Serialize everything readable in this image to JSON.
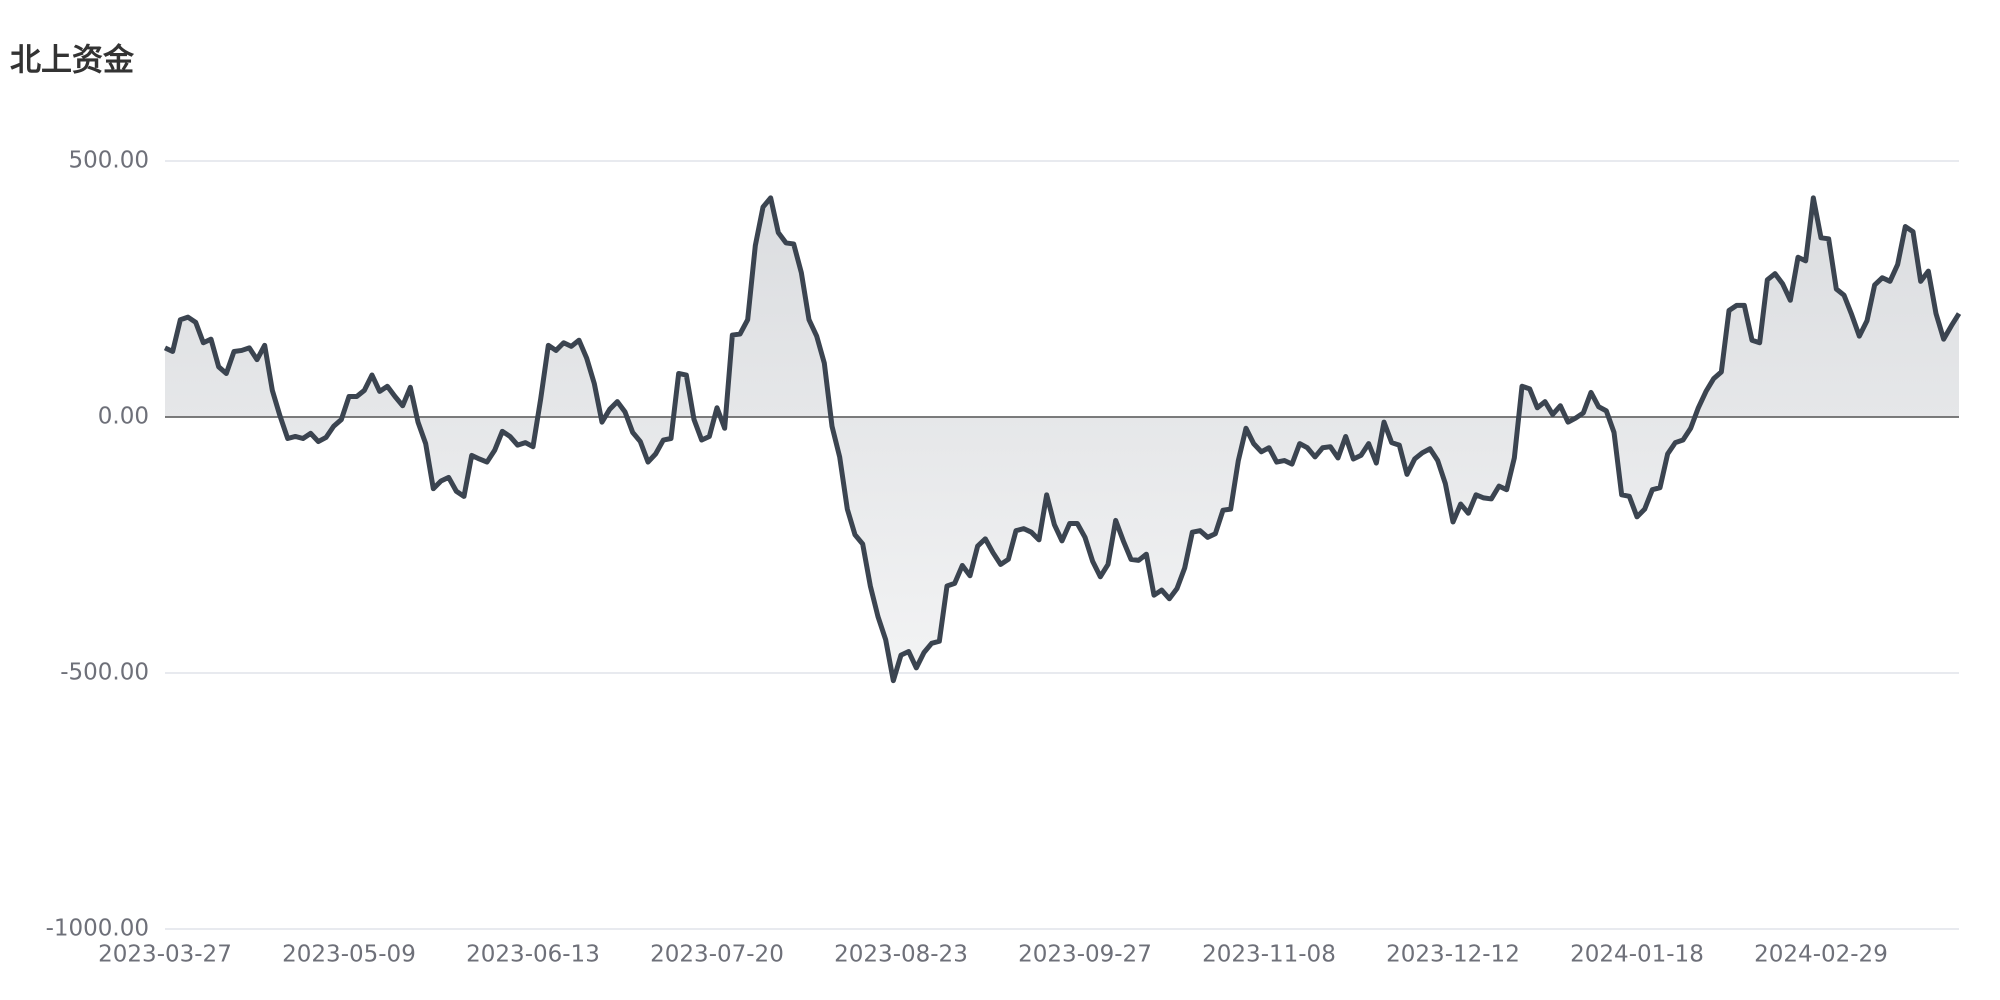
{
  "chart_data": {
    "type": "line",
    "title": "北上资金",
    "categories": [
      "2023-03-27",
      null,
      null,
      null,
      null,
      null,
      null,
      null,
      null,
      null,
      null,
      null,
      null,
      null,
      null,
      null,
      null,
      null,
      null,
      null,
      null,
      null,
      null,
      null,
      "2023-05-09",
      null,
      null,
      null,
      null,
      null,
      null,
      null,
      null,
      null,
      null,
      null,
      null,
      null,
      null,
      null,
      null,
      null,
      null,
      null,
      null,
      null,
      null,
      null,
      "2023-06-13",
      null,
      null,
      null,
      null,
      null,
      null,
      null,
      null,
      null,
      null,
      null,
      null,
      null,
      null,
      null,
      null,
      null,
      null,
      null,
      null,
      null,
      null,
      null,
      "2023-07-20",
      null,
      null,
      null,
      null,
      null,
      null,
      null,
      null,
      null,
      null,
      null,
      null,
      null,
      null,
      null,
      null,
      null,
      null,
      null,
      null,
      null,
      null,
      null,
      "2023-08-23",
      null,
      null,
      null,
      null,
      null,
      null,
      null,
      null,
      null,
      null,
      null,
      null,
      null,
      null,
      null,
      null,
      null,
      null,
      null,
      null,
      null,
      null,
      null,
      "2023-09-27",
      null,
      null,
      null,
      null,
      null,
      null,
      null,
      null,
      null,
      null,
      null,
      null,
      null,
      null,
      null,
      null,
      null,
      null,
      null,
      null,
      null,
      null,
      null,
      "2023-11-08",
      null,
      null,
      null,
      null,
      null,
      null,
      null,
      null,
      null,
      null,
      null,
      null,
      null,
      null,
      null,
      null,
      null,
      null,
      null,
      null,
      null,
      null,
      null,
      "2023-12-12",
      null,
      null,
      null,
      null,
      null,
      null,
      null,
      null,
      null,
      null,
      null,
      null,
      null,
      null,
      null,
      null,
      null,
      null,
      null,
      null,
      null,
      null,
      null,
      "2024-01-18",
      null,
      null,
      null,
      null,
      null,
      null,
      null,
      null,
      null,
      null,
      null,
      null,
      null,
      null,
      null,
      null,
      null,
      null,
      null,
      null,
      null,
      null,
      null,
      "2024-02-29",
      null,
      null,
      null,
      null,
      null,
      null,
      null,
      null,
      null,
      null,
      null,
      null,
      null,
      null,
      null,
      null,
      null,
      null
    ],
    "series": [
      {
        "color": "#3b4450",
        "values": [
          135,
          128,
          190,
          195,
          185,
          145,
          152,
          98,
          85,
          128,
          130,
          135,
          112,
          140,
          52,
          2,
          -42,
          -38,
          -42,
          -32,
          -48,
          -40,
          -18,
          -5,
          40,
          40,
          52,
          82,
          50,
          60,
          40,
          22,
          58,
          -10,
          -52,
          -140,
          -125,
          -118,
          -145,
          -155,
          -75,
          -82,
          -88,
          -65,
          -28,
          -38,
          -55,
          -50,
          -58,
          35,
          140,
          130,
          145,
          138,
          150,
          115,
          65,
          -10,
          15,
          30,
          10,
          -30,
          -48,
          -88,
          -72,
          -45,
          -42,
          85,
          82,
          -5,
          -45,
          -38,
          18,
          -22,
          160,
          162,
          190,
          335,
          410,
          428,
          360,
          340,
          338,
          282,
          190,
          158,
          105,
          -18,
          -78,
          -180,
          -230,
          -248,
          -330,
          -390,
          -435,
          -515,
          -465,
          -458,
          -490,
          -460,
          -442,
          -438,
          -330,
          -325,
          -290,
          -310,
          -252,
          -238,
          -265,
          -288,
          -278,
          -222,
          -218,
          -225,
          -240,
          -152,
          -210,
          -242,
          -208,
          -208,
          -235,
          -282,
          -312,
          -288,
          -202,
          -242,
          -278,
          -280,
          -268,
          -348,
          -338,
          -355,
          -335,
          -295,
          -225,
          -222,
          -235,
          -228,
          -182,
          -180,
          -85,
          -22,
          -52,
          -68,
          -60,
          -88,
          -85,
          -92,
          -52,
          -60,
          -78,
          -60,
          -58,
          -80,
          -38,
          -82,
          -75,
          -52,
          -90,
          -10,
          -50,
          -55,
          -112,
          -82,
          -70,
          -62,
          -85,
          -130,
          -205,
          -170,
          -188,
          -152,
          -158,
          -160,
          -135,
          -142,
          -80,
          60,
          55,
          18,
          30,
          5,
          22,
          -10,
          -2,
          8,
          48,
          20,
          12,
          -30,
          -152,
          -155,
          -195,
          -180,
          -142,
          -138,
          -72,
          -50,
          -45,
          -22,
          18,
          50,
          75,
          88,
          208,
          218,
          218,
          150,
          145,
          268,
          280,
          260,
          228,
          312,
          305,
          428,
          350,
          348,
          250,
          238,
          200,
          158,
          188,
          258,
          272,
          265,
          298,
          372,
          362,
          265,
          285,
          202,
          152,
          178,
          202
        ]
      }
    ],
    "ylim": [
      -1000,
      500
    ],
    "yticks": [
      {
        "value": -1000,
        "label": "-1000.00"
      },
      {
        "value": -500,
        "label": "-500.00"
      },
      {
        "value": 0,
        "label": "0.00"
      },
      {
        "value": 500,
        "label": "500.00"
      }
    ],
    "grid": true
  }
}
